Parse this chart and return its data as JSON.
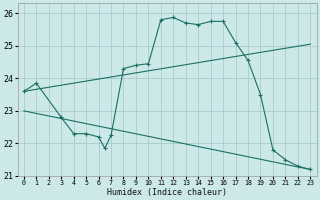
{
  "xlabel": "Humidex (Indice chaleur)",
  "xlim": [
    -0.5,
    23.5
  ],
  "ylim": [
    21.0,
    26.3
  ],
  "yticks": [
    21,
    22,
    23,
    24,
    25,
    26
  ],
  "xticks": [
    0,
    1,
    2,
    3,
    4,
    5,
    6,
    7,
    8,
    9,
    10,
    11,
    12,
    13,
    14,
    15,
    16,
    17,
    18,
    19,
    20,
    21,
    22,
    23
  ],
  "bg_color": "#cce8e8",
  "grid_color": "#aacccc",
  "line_color": "#1a7060",
  "line1": {
    "x": [
      0,
      1,
      3,
      4,
      5,
      6,
      6.5,
      7,
      8,
      9,
      10,
      11,
      12,
      13,
      14,
      15,
      16,
      17,
      18,
      19,
      20,
      21,
      22,
      23
    ],
    "y": [
      23.6,
      23.85,
      22.8,
      22.3,
      22.3,
      22.2,
      21.85,
      22.25,
      24.3,
      24.4,
      24.45,
      25.8,
      25.87,
      25.7,
      25.65,
      25.75,
      25.75,
      25.1,
      24.55,
      23.5,
      21.8,
      21.5,
      21.3,
      21.2
    ]
  },
  "line2": {
    "x": [
      0,
      23
    ],
    "y": [
      23.6,
      25.05
    ]
  },
  "line3": {
    "x": [
      0,
      23
    ],
    "y": [
      23.0,
      21.2
    ]
  }
}
